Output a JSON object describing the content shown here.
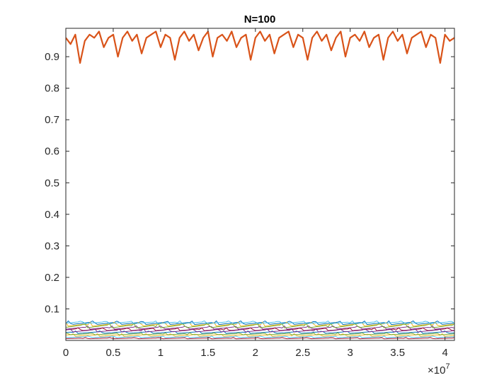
{
  "chart_data": {
    "type": "line",
    "title": "N=100",
    "xlabel": "",
    "ylabel": "",
    "xlim": [
      0,
      41000000
    ],
    "ylim": [
      0,
      0.99
    ],
    "x_exponent_label": "×10",
    "x_exponent_power": "7",
    "x_ticks": [
      {
        "value": 0,
        "label": "0"
      },
      {
        "value": 5000000,
        "label": "0.5"
      },
      {
        "value": 10000000,
        "label": "1"
      },
      {
        "value": 15000000,
        "label": "1.5"
      },
      {
        "value": 20000000,
        "label": "2"
      },
      {
        "value": 25000000,
        "label": "2.5"
      },
      {
        "value": 30000000,
        "label": "3"
      },
      {
        "value": 35000000,
        "label": "3.5"
      },
      {
        "value": 40000000,
        "label": "4"
      }
    ],
    "y_ticks": [
      {
        "value": 0.1,
        "label": "0.1"
      },
      {
        "value": 0.2,
        "label": "0.2"
      },
      {
        "value": 0.3,
        "label": "0.3"
      },
      {
        "value": 0.4,
        "label": "0.4"
      },
      {
        "value": 0.5,
        "label": "0.5"
      },
      {
        "value": 0.6,
        "label": "0.6"
      },
      {
        "value": 0.7,
        "label": "0.7"
      },
      {
        "value": 0.8,
        "label": "0.8"
      },
      {
        "value": 0.9,
        "label": "0.9"
      }
    ],
    "grid": false,
    "legend": "none",
    "series": [
      {
        "color": "#D95319",
        "width": 2.2,
        "x": [
          0,
          500000,
          1000000,
          1500000,
          2000000,
          2500000,
          3000000,
          3500000,
          4000000,
          4500000,
          5000000,
          5500000,
          6000000,
          6500000,
          7000000,
          7500000,
          8000000,
          8500000,
          9000000,
          9500000,
          10000000,
          10500000,
          11000000,
          11500000,
          12000000,
          12500000,
          13000000,
          13500000,
          14000000,
          14500000,
          15000000,
          15500000,
          16000000,
          16500000,
          17000000,
          17500000,
          18000000,
          18500000,
          19000000,
          19500000,
          20000000,
          20500000,
          21000000,
          21500000,
          22000000,
          22500000,
          23000000,
          23500000,
          24000000,
          24500000,
          25000000,
          25500000,
          26000000,
          26500000,
          27000000,
          27500000,
          28000000,
          28500000,
          29000000,
          29500000,
          30000000,
          30500000,
          31000000,
          31500000,
          32000000,
          32500000,
          33000000,
          33500000,
          34000000,
          34500000,
          35000000,
          35500000,
          36000000,
          36500000,
          37000000,
          37500000,
          38000000,
          38500000,
          39000000,
          39500000,
          40000000,
          40500000,
          41000000
        ],
        "y": [
          0.96,
          0.94,
          0.97,
          0.88,
          0.95,
          0.97,
          0.96,
          0.98,
          0.93,
          0.96,
          0.97,
          0.9,
          0.96,
          0.98,
          0.95,
          0.97,
          0.91,
          0.96,
          0.97,
          0.98,
          0.93,
          0.97,
          0.96,
          0.89,
          0.96,
          0.98,
          0.95,
          0.97,
          0.92,
          0.96,
          0.98,
          0.9,
          0.96,
          0.97,
          0.95,
          0.98,
          0.93,
          0.96,
          0.97,
          0.89,
          0.96,
          0.98,
          0.95,
          0.97,
          0.91,
          0.96,
          0.97,
          0.98,
          0.93,
          0.97,
          0.96,
          0.89,
          0.96,
          0.98,
          0.95,
          0.97,
          0.92,
          0.96,
          0.98,
          0.9,
          0.96,
          0.97,
          0.95,
          0.98,
          0.93,
          0.96,
          0.97,
          0.89,
          0.96,
          0.98,
          0.95,
          0.97,
          0.91,
          0.96,
          0.97,
          0.98,
          0.93,
          0.97,
          0.96,
          0.88,
          0.97,
          0.95,
          0.96
        ]
      },
      {
        "color": "#0072BD",
        "width": 1,
        "level": 0.053,
        "amp": 0.009
      },
      {
        "color": "#EDB120",
        "width": 1,
        "level": 0.048,
        "amp": 0.01
      },
      {
        "color": "#7E2F8E",
        "width": 1,
        "level": 0.038,
        "amp": 0.008
      },
      {
        "color": "#77AC30",
        "width": 1,
        "level": 0.043,
        "amp": 0.011
      },
      {
        "color": "#4DBEEE",
        "width": 1,
        "level": 0.055,
        "amp": 0.007
      },
      {
        "color": "#A2142F",
        "width": 1,
        "level": 0.033,
        "amp": 0.007
      },
      {
        "color": "#0072BD",
        "width": 1,
        "level": 0.024,
        "amp": 0.006
      },
      {
        "color": "#EDB120",
        "width": 1,
        "level": 0.015,
        "amp": 0.006
      },
      {
        "color": "#7E2F8E",
        "width": 1,
        "level": 0.029,
        "amp": 0.008
      },
      {
        "color": "#77AC30",
        "width": 1,
        "level": 0.019,
        "amp": 0.005
      },
      {
        "color": "#4DBEEE",
        "width": 1,
        "level": 0.01,
        "amp": 0.004
      },
      {
        "color": "#A2142F",
        "width": 1,
        "level": 0.006,
        "amp": 0.003
      }
    ]
  }
}
